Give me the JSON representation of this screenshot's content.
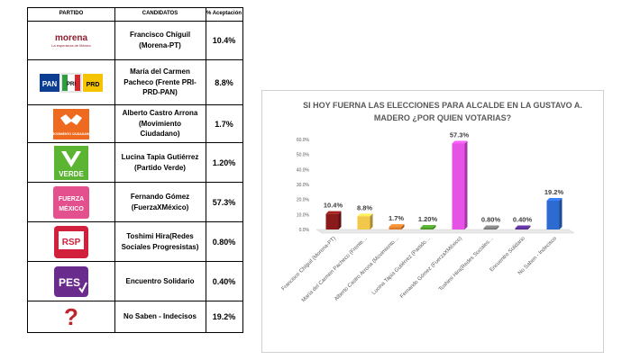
{
  "table": {
    "headers": [
      "PARTIDO",
      "CANDIDATOS",
      "% Aceptación"
    ],
    "rows": [
      {
        "logo": "morena",
        "logo_sub": "La esperanza de México",
        "candidate": "Francisco Chíguil (Morena-PT)",
        "percent": "10.4%"
      },
      {
        "logo": "PAN PRI PRD",
        "candidate": "María del Carmen Pacheco (Frente PRI-PRD-PAN)",
        "percent": "8.8%"
      },
      {
        "logo": "MOVIMIENTO CIUDADANO",
        "candidate": "Alberto Castro Arrona (Movimiento Ciudadano)",
        "percent": "1.7%"
      },
      {
        "logo": "VERDE",
        "candidate": "Lucina Tapia Gutiérrez (Partido Verde)",
        "percent": "1.20%"
      },
      {
        "logo": "FUERZA MÉXICO",
        "candidate": "Fernando Gómez (FuerzaXMéxico)",
        "percent": "57.3%"
      },
      {
        "logo": "RSP",
        "candidate": "Toshimi Hira(Redes Sociales Progresistas)",
        "percent": "0.80%"
      },
      {
        "logo": "PES",
        "candidate": "Encuentro Solidario",
        "percent": "0.40%"
      },
      {
        "logo": "?",
        "candidate": "No Saben - Indecisos",
        "percent": "19.2%"
      }
    ]
  },
  "colors": {
    "morena": "#8b1e2e",
    "pan": "#0b3d91",
    "pri_green": "#2e9e3e",
    "pri_red": "#d7262e",
    "prd_yellow": "#f5c400",
    "mc_orange": "#ee6a1f",
    "verde": "#5bb432",
    "fxm": "#e44f8d",
    "rsp": "#d21f3c",
    "pes": "#6a2c8c"
  },
  "chart_data": {
    "type": "bar",
    "title": "SI HOY FUERNA LAS ELECCIONES PARA ALCALDE EN LA GUSTAVO A. MADERO ¿POR QUIEN VOTARIAS?",
    "categories": [
      "Francisco Chíguil (Morena-PT)",
      "María del Carmen Pacheco (Frente…",
      "Alberto Castro Arrona (Movimiento…",
      "Lucina Tapia Gutiérrez (Partido…",
      "Fernando Gómez (FuerzaXMéxico)",
      "Toshimi Hira(Redes Sociales…",
      "Encuentro Solidario",
      "No Saben - Indecisos"
    ],
    "values": [
      10.4,
      8.8,
      1.7,
      1.2,
      57.3,
      0.8,
      0.4,
      19.2
    ],
    "data_labels": [
      "10.4%",
      "8.8%",
      "1.7%",
      "1.20%",
      "57.3%",
      "0.80%",
      "0.40%",
      "19.2%"
    ],
    "colors": [
      "#8b1a1a",
      "#f2c84b",
      "#e07b2a",
      "#4e9a2a",
      "#e651e6",
      "#777777",
      "#5a2d91",
      "#2d6bd1"
    ],
    "ytick_labels": [
      "0.0%",
      "10.0%",
      "20.0%",
      "30.0%",
      "40.0%",
      "50.0%",
      "60.0%"
    ],
    "ylim": [
      0,
      60
    ],
    "grid": false,
    "legend": "none"
  }
}
